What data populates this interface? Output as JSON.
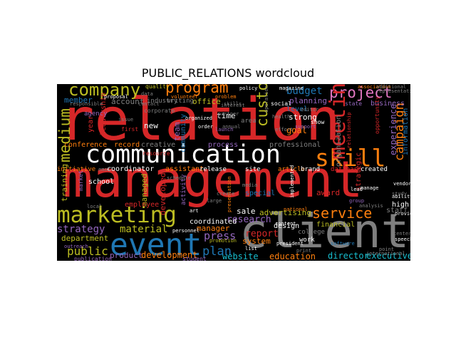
{
  "chart_data": {
    "type": "wordcloud",
    "title": "PUBLIC_RELATIONS wordcloud",
    "background": "#000000",
    "words": [
      {
        "text": "relation",
        "rank": 1,
        "color": "#d62728"
      },
      {
        "text": "management",
        "rank": 2,
        "color": "#d62728"
      },
      {
        "text": "client",
        "rank": 3,
        "color": "#7f7f7f"
      },
      {
        "text": "communication",
        "rank": 4,
        "color": "#ffffff"
      },
      {
        "text": "event",
        "rank": 5,
        "color": "#1f77b4"
      },
      {
        "text": "marketing",
        "rank": 6,
        "color": "#bcbd22"
      },
      {
        "text": "skill",
        "rank": 7,
        "color": "#ff7f0e"
      },
      {
        "text": "company",
        "rank": 8,
        "color": "#bcbd22"
      },
      {
        "text": "project",
        "rank": 9,
        "color": "#e377c2"
      },
      {
        "text": "program",
        "rank": 10,
        "color": "#ff7f0e"
      },
      {
        "text": "service",
        "rank": 11,
        "color": "#ff7f0e"
      },
      {
        "text": "medium",
        "rank": 12,
        "color": "#bcbd22"
      },
      {
        "text": "customer",
        "rank": 13,
        "color": "#bcbd22"
      },
      {
        "text": "meeting",
        "rank": 14,
        "color": "#d62728"
      },
      {
        "text": "strategy",
        "rank": 15,
        "color": "#9467bd"
      },
      {
        "text": "material",
        "rank": 16,
        "color": "#bcbd22"
      },
      {
        "text": "campaign",
        "rank": 17,
        "color": "#ff7f0e"
      },
      {
        "text": "budget",
        "rank": 18,
        "color": "#1f77b4"
      },
      {
        "text": "public",
        "rank": 19,
        "color": "#bcbd22"
      },
      {
        "text": "development",
        "rank": 20,
        "color": "#ff7f0e"
      },
      {
        "text": "plan",
        "rank": 21,
        "color": "#1f77b4"
      },
      {
        "text": "press",
        "rank": 22,
        "color": "#9467bd"
      },
      {
        "text": "research",
        "rank": 23,
        "color": "#9467bd"
      },
      {
        "text": "report",
        "rank": 24,
        "color": "#d62728"
      },
      {
        "text": "website",
        "rank": 25,
        "color": "#17becf"
      },
      {
        "text": "education",
        "rank": 26,
        "color": "#ff7f0e"
      },
      {
        "text": "director",
        "rank": 27,
        "color": "#17becf"
      },
      {
        "text": "executive",
        "rank": 28,
        "color": "#17becf"
      },
      {
        "text": "experience",
        "rank": 29,
        "color": "#9467bd"
      },
      {
        "text": "organization",
        "rank": 30,
        "color": "#7f7f7f"
      },
      {
        "text": "planning",
        "rank": 31,
        "color": "#9467bd"
      },
      {
        "text": "member",
        "rank": 32,
        "color": "#1f77b4"
      },
      {
        "text": "account",
        "rank": 33,
        "color": "#7f7f7f"
      },
      {
        "text": "office",
        "rank": 34,
        "color": "#bcbd22"
      },
      {
        "text": "team",
        "rank": 35,
        "color": "#9467bd"
      },
      {
        "text": "business",
        "rank": 36,
        "color": "#9467bd"
      },
      {
        "text": "information",
        "rank": 37,
        "color": "#1f77b4"
      },
      {
        "text": "department",
        "rank": 38,
        "color": "#bcbd22"
      },
      {
        "text": "product",
        "rank": 39,
        "color": "#9467bd"
      },
      {
        "text": "system",
        "rank": 40,
        "color": "#ff7f0e"
      },
      {
        "text": "advertising",
        "rank": 41,
        "color": "#bcbd22"
      },
      {
        "text": "award",
        "rank": 42,
        "color": "#d62728"
      },
      {
        "text": "sale",
        "rank": 43,
        "color": "#ffffff"
      },
      {
        "text": "manager",
        "rank": 44,
        "color": "#ff7f0e"
      },
      {
        "text": "coordinated",
        "rank": 45,
        "color": "#ffffff"
      },
      {
        "text": "training",
        "rank": 46,
        "color": "#bcbd22"
      },
      {
        "text": "managed",
        "rank": 47,
        "color": "#bcbd22"
      },
      {
        "text": "developed",
        "rank": 48,
        "color": "#d62728"
      },
      {
        "text": "conference",
        "rank": 49,
        "color": "#ff7f0e"
      },
      {
        "text": "record",
        "rank": 50,
        "color": "#ff7f0e"
      },
      {
        "text": "creative",
        "rank": 51,
        "color": "#7f7f7f"
      },
      {
        "text": "professional",
        "rank": 52,
        "color": "#7f7f7f"
      },
      {
        "text": "process",
        "rank": 53,
        "color": "#9467bd"
      },
      {
        "text": "community",
        "rank": 54,
        "color": "#1f77b4"
      },
      {
        "text": "time",
        "rank": 55,
        "color": "#ffffff"
      },
      {
        "text": "new",
        "rank": 56,
        "color": "#ffffff"
      },
      {
        "text": "leadership",
        "rank": 57,
        "color": "#d62728"
      },
      {
        "text": "year",
        "rank": 58,
        "color": "#d62728"
      },
      {
        "text": "coordinator",
        "rank": 59,
        "color": "#ffffff"
      },
      {
        "text": "assistant",
        "rank": 60,
        "color": "#ff7f0e"
      },
      {
        "text": "employee",
        "rank": 61,
        "color": "#d62728"
      },
      {
        "text": "school",
        "rank": 62,
        "color": "#ffffff"
      },
      {
        "text": "initiative",
        "rank": 63,
        "color": "#ff7f0e"
      },
      {
        "text": "goal",
        "rank": 64,
        "color": "#ff7f0e"
      },
      {
        "text": "strong",
        "rank": 65,
        "color": "#ffffff"
      },
      {
        "text": "level",
        "rank": 66,
        "color": "#1f77b4"
      },
      {
        "text": "special",
        "rank": 67,
        "color": "#1f77b4"
      },
      {
        "text": "release",
        "rank": 68,
        "color": "#ffffff"
      },
      {
        "text": "site",
        "rank": 69,
        "color": "#ffffff"
      },
      {
        "text": "article",
        "rank": 70,
        "color": "#ff7f0e"
      },
      {
        "text": "brand",
        "rank": 71,
        "color": "#ffffff"
      },
      {
        "text": "database",
        "rank": 72,
        "color": "#d62728"
      },
      {
        "text": "created",
        "rank": 73,
        "color": "#ffffff"
      },
      {
        "text": "design",
        "rank": 74,
        "color": "#ffffff"
      },
      {
        "text": "financial",
        "rank": 75,
        "color": "#bcbd22"
      },
      {
        "text": "college",
        "rank": 76,
        "color": "#7f7f7f"
      },
      {
        "text": "work",
        "rank": 77,
        "color": "#ffffff"
      },
      {
        "text": "strategic",
        "rank": 78,
        "color": "#d62728"
      },
      {
        "text": "staff",
        "rank": 79,
        "color": "#7f7f7f"
      },
      {
        "text": "high",
        "rank": 80,
        "color": "#ffffff"
      },
      {
        "text": "writing",
        "rank": 81,
        "color": "#7f7f7f"
      },
      {
        "text": "quality",
        "rank": 82,
        "color": "#bcbd22"
      },
      {
        "text": "industry",
        "rank": 83,
        "color": "#7f7f7f"
      },
      {
        "text": "corporate",
        "rank": 84,
        "color": "#7f7f7f"
      },
      {
        "text": "first",
        "rank": 85,
        "color": "#d62728"
      },
      {
        "text": "resource",
        "rank": 86,
        "color": "#d62728"
      },
      {
        "text": "market",
        "rank": 87,
        "color": "#9467bd"
      },
      {
        "text": "area",
        "rank": 88,
        "color": "#7f7f7f"
      },
      {
        "text": "social",
        "rank": 89,
        "color": "#ffffff"
      },
      {
        "text": "show",
        "rank": 90,
        "color": "#ffffff"
      },
      {
        "text": "agency",
        "rank": 91,
        "color": "#9467bd"
      },
      {
        "text": "activity",
        "rank": 92,
        "color": "#9467bd"
      },
      {
        "text": "publication",
        "rank": 93,
        "color": "#9467bd"
      },
      {
        "text": "student",
        "rank": 94,
        "color": "#9467bd"
      },
      {
        "text": "partner",
        "rank": 95,
        "color": "#7f7f7f"
      },
      {
        "text": "print",
        "rank": 96,
        "color": "#7f7f7f"
      },
      {
        "text": "state",
        "rank": 97,
        "color": "#9467bd"
      },
      {
        "text": "international",
        "rank": 98,
        "color": "#7f7f7f"
      },
      {
        "text": "magazine",
        "rank": 99,
        "color": "#ffffff"
      },
      {
        "text": "policy",
        "rank": 100,
        "color": "#ffffff"
      },
      {
        "text": "organized",
        "rank": 101,
        "color": "#ffffff"
      },
      {
        "text": "proposal",
        "rank": 102,
        "color": "#ffffff"
      },
      {
        "text": "volunteer",
        "rank": 103,
        "color": "#ff7f0e"
      },
      {
        "text": "problem",
        "rank": 104,
        "color": "#ff7f0e"
      },
      {
        "text": "association",
        "rank": 105,
        "color": "#ff7f0e"
      },
      {
        "text": "opportunity",
        "rank": 106,
        "color": "#d62728"
      },
      {
        "text": "support",
        "rank": 107,
        "color": "#9467bd"
      },
      {
        "text": "editor",
        "rank": 108,
        "color": "#7f7f7f"
      },
      {
        "text": "annual",
        "rank": 109,
        "color": "#7f7f7f"
      },
      {
        "text": "order",
        "rank": 110,
        "color": "#ffffff"
      },
      {
        "text": "launch",
        "rank": 111,
        "color": "#9467bd"
      },
      {
        "text": "interest",
        "rank": 112,
        "color": "#7f7f7f"
      },
      {
        "text": "skills",
        "rank": 113,
        "color": "#7f7f7f"
      },
      {
        "text": "vendor",
        "rank": 114,
        "color": "#ffffff"
      },
      {
        "text": "ability",
        "rank": 115,
        "color": "#ffffff"
      },
      {
        "text": "study",
        "rank": 116,
        "color": "#7f7f7f"
      },
      {
        "text": "group",
        "rank": 117,
        "color": "#9467bd"
      },
      {
        "text": "lead",
        "rank": 118,
        "color": "#ffffff"
      },
      {
        "text": "analysis",
        "rank": 119,
        "color": "#7f7f7f"
      },
      {
        "text": "presentation",
        "rank": 120,
        "color": "#ff7f0e"
      },
      {
        "text": "content",
        "rank": 121,
        "color": "#ffffff"
      },
      {
        "text": "national",
        "rank": 122,
        "color": "#ff7f0e"
      },
      {
        "text": "implemented",
        "rank": 123,
        "color": "#ffffff"
      },
      {
        "text": "personnel",
        "rank": 124,
        "color": "#ffffff"
      },
      {
        "text": "promotion",
        "rank": 125,
        "color": "#bcbd22"
      },
      {
        "text": "outreach",
        "rank": 126,
        "color": "#9467bd"
      },
      {
        "text": "software",
        "rank": 127,
        "color": "#1f77b4"
      },
      {
        "text": "speech",
        "rank": 128,
        "color": "#ffffff"
      },
      {
        "text": "center",
        "rank": 129,
        "color": "#7f7f7f"
      },
      {
        "text": "point",
        "rank": 130,
        "color": "#7f7f7f"
      },
      {
        "text": "president",
        "rank": 131,
        "color": "#ffffff"
      },
      {
        "text": "manage",
        "rank": 132,
        "color": "#ffffff"
      },
      {
        "text": "list",
        "rank": 133,
        "color": "#ffffff"
      },
      {
        "text": "art",
        "rank": 134,
        "color": "#ffffff"
      },
      {
        "text": "provide",
        "rank": 135,
        "color": "#ffffff"
      },
      {
        "text": "local",
        "rank": 136,
        "color": "#7f7f7f"
      },
      {
        "text": "email",
        "rank": 137,
        "color": "#7f7f7f"
      },
      {
        "text": "contact",
        "rank": 138,
        "color": "#7f7f7f"
      },
      {
        "text": "responsible",
        "rank": 139,
        "color": "#7f7f7f"
      },
      {
        "text": "schedule",
        "rank": 140,
        "color": "#7f7f7f"
      },
      {
        "text": "representative",
        "rank": 141,
        "color": "#7f7f7f"
      },
      {
        "text": "additional",
        "rank": 142,
        "color": "#7f7f7f"
      },
      {
        "text": "relationship",
        "rank": 143,
        "color": "#d62728"
      },
      {
        "text": "operation",
        "rank": 144,
        "color": "#7f7f7f"
      },
      {
        "text": "data",
        "rank": 145,
        "color": "#7f7f7f"
      },
      {
        "text": "issue",
        "rank": 146,
        "color": "#7f7f7f"
      },
      {
        "text": "effort",
        "rank": 147,
        "color": "#7f7f7f"
      },
      {
        "text": "health",
        "rank": 148,
        "color": "#7f7f7f"
      },
      {
        "text": "large",
        "rank": 149,
        "color": "#7f7f7f"
      },
      {
        "text": "create",
        "rank": 150,
        "color": "#7f7f7f"
      },
      {
        "text": "media",
        "rank": 151,
        "color": "#7f7f7f"
      }
    ]
  }
}
